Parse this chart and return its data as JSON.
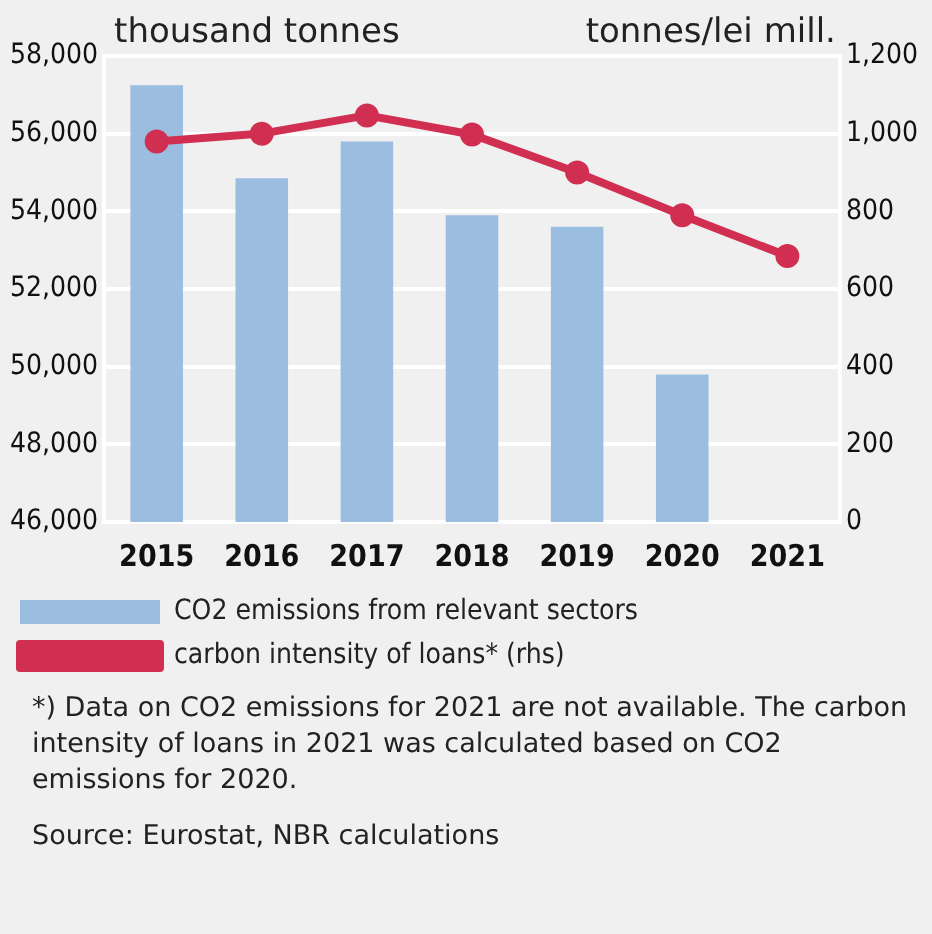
{
  "chart_data": {
    "type": "bar",
    "ylabel": "thousand tonnes",
    "y2label": "tonnes/lei mill.",
    "categories": [
      "2015",
      "2016",
      "2017",
      "2018",
      "2019",
      "2020",
      "2021"
    ],
    "series": [
      {
        "name": "CO2 emissions from relevant sectors",
        "color": "#9bbde0",
        "values": [
          57250,
          54850,
          55800,
          53900,
          53600,
          49800,
          null
        ]
      },
      {
        "name": "carbon intensity of loans* (rhs)",
        "type": "line",
        "axis": "y2",
        "color": "#d12f52",
        "marker": "circle",
        "values": [
          980,
          1000,
          1047,
          998,
          900,
          790,
          685
        ]
      }
    ],
    "ylim": [
      46000,
      58000
    ],
    "yticks": [
      {
        "value": 46000,
        "label": "46,000"
      },
      {
        "value": 48000,
        "label": "48,000"
      },
      {
        "value": 50000,
        "label": "50,000"
      },
      {
        "value": 52000,
        "label": "52,000"
      },
      {
        "value": 54000,
        "label": "54,000"
      },
      {
        "value": 56000,
        "label": "56,000"
      },
      {
        "value": 58000,
        "label": "58,000"
      }
    ],
    "y2lim": [
      0,
      1200
    ],
    "y2ticks": [
      0,
      200,
      400,
      600,
      800,
      {
        "value": 1000,
        "label": "1,000"
      },
      {
        "value": 1200,
        "label": "1,200"
      }
    ],
    "grid": "y",
    "legend": "bottom",
    "annotations": [
      "*) Data on CO2 emissions for 2021 are not available. The carbon intensity of loans in 2021 was calculated based on CO2 emissions for 2020.",
      "Source: Eurostat, NBR calculations"
    ]
  }
}
